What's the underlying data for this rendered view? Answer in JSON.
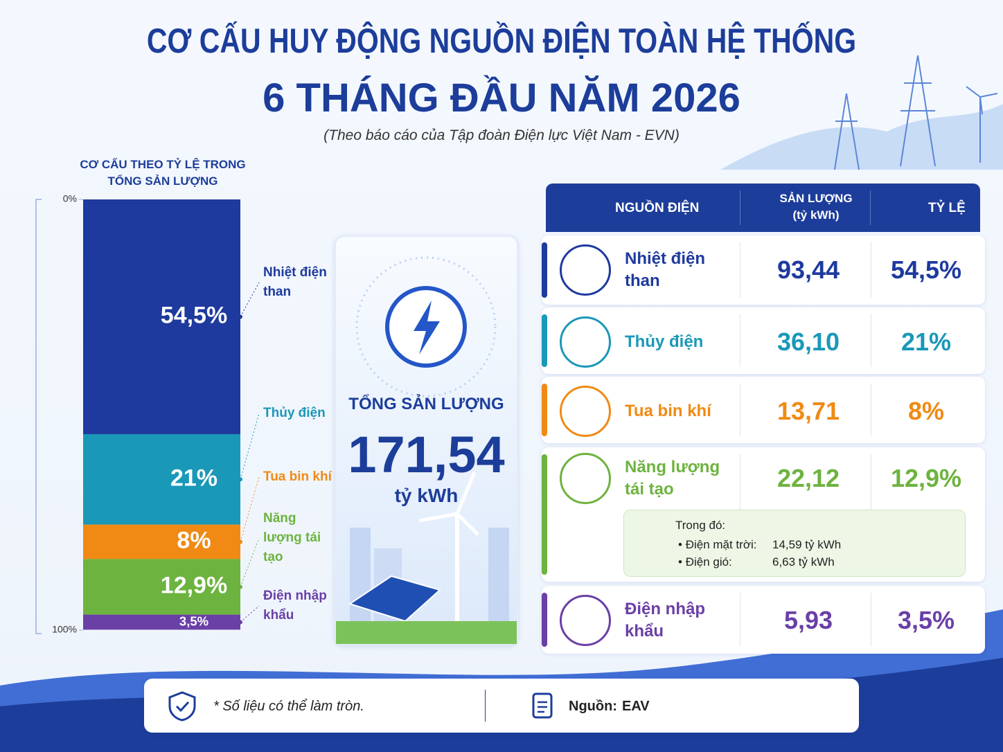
{
  "header": {
    "title_line1": "CƠ CẤU HUY ĐỘNG NGUỒN ĐIỆN TOÀN HỆ THỐNG",
    "title_line2": "6 THÁNG ĐẦU NĂM 2026",
    "subtitle": "(Theo báo cáo của Tập đoàn Điện lực Việt Nam - EVN)"
  },
  "chart_data": {
    "type": "bar",
    "stacked": true,
    "title": "CƠ CẤU THEO TỶ LỆ TRONG TỔNG SẢN LƯỢNG",
    "categories": [
      "Nhiệt điện than",
      "Thủy điện",
      "Tua bin khí",
      "Năng lượng tái tạo",
      "Điện nhập khẩu"
    ],
    "values": [
      54.5,
      21,
      8,
      12.9,
      3.5
    ],
    "value_labels": [
      "54,5%",
      "21%",
      "8%",
      "12,9%",
      "3,5%"
    ],
    "colors": [
      "#1e3a9e",
      "#1a98b8",
      "#f08a14",
      "#6db33f",
      "#6a3fa6"
    ],
    "ylim": [
      0,
      100
    ],
    "yticks": [
      {
        "value": 0,
        "label": "0%"
      },
      {
        "value": 100,
        "label": "100%"
      }
    ]
  },
  "total": {
    "label": "TỔNG SẢN LƯỢNG",
    "value": "171,54",
    "unit": "tỷ kWh"
  },
  "table": {
    "header_source": "NGUỒN ĐIỆN",
    "header_output": "SẢN LƯỢNG",
    "header_output_unit": "(tỷ kWh)",
    "header_share": "TỶ LỆ",
    "rows": [
      [
        "Nhiệt điện than",
        "93,44",
        "54,5%"
      ],
      [
        "Thủy điện",
        "36,10",
        "21%"
      ],
      [
        "Tua bin khí",
        "13,71",
        "8%"
      ],
      [
        "Năng lượng tái tạo",
        "22,12",
        "12,9%"
      ],
      [
        "Điện nhập khẩu",
        "5,93",
        "3,5%"
      ]
    ],
    "detail": {
      "title": "Trong đó:",
      "items": [
        [
          "Điện mặt trời:",
          "14,59 tỷ kWh"
        ],
        [
          "Điện gió:",
          "6,63 tỷ kWh"
        ]
      ]
    }
  },
  "footer": {
    "note": "* Số liệu có thể làm tròn.",
    "source_label": "Nguồn:",
    "source": "EAV"
  }
}
